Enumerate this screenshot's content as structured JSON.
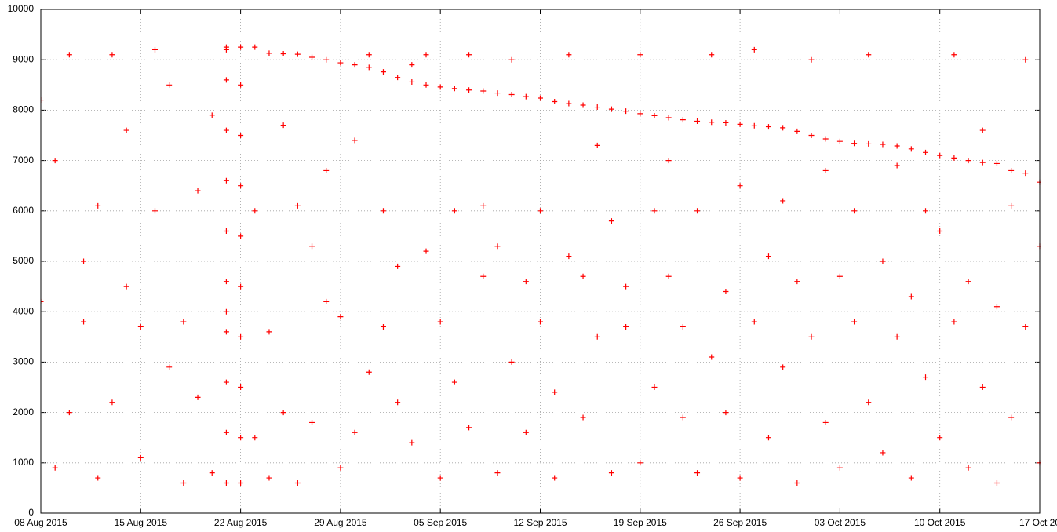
{
  "chart_data": {
    "type": "scatter",
    "color": "#ff0000",
    "grid": true,
    "marker": "+",
    "xlim": [
      "2015-08-08",
      "2015-10-17"
    ],
    "ylim": [
      0,
      10000
    ],
    "yticks": [
      0,
      1000,
      2000,
      3000,
      4000,
      5000,
      6000,
      7000,
      8000,
      9000,
      10000
    ],
    "xticks": [
      {
        "value": "2015-08-08",
        "label": "08 Aug 2015"
      },
      {
        "value": "2015-08-15",
        "label": "15 Aug 2015"
      },
      {
        "value": "2015-08-22",
        "label": "22 Aug 2015"
      },
      {
        "value": "2015-08-29",
        "label": "29 Aug 2015"
      },
      {
        "value": "2015-09-05",
        "label": "05 Sep 2015"
      },
      {
        "value": "2015-09-12",
        "label": "12 Sep 2015"
      },
      {
        "value": "2015-09-19",
        "label": "19 Sep 2015"
      },
      {
        "value": "2015-09-26",
        "label": "26 Sep 2015"
      },
      {
        "value": "2015-10-03",
        "label": "03 Oct 2015"
      },
      {
        "value": "2015-10-10",
        "label": "10 Oct 2015"
      },
      {
        "value": "2015-10-17",
        "label": "17 Oct 20"
      }
    ],
    "x": [
      "2015-08-08",
      "2015-08-08",
      "2015-08-09",
      "2015-08-09",
      "2015-08-10",
      "2015-08-10",
      "2015-08-11",
      "2015-08-11",
      "2015-08-12",
      "2015-08-12",
      "2015-08-13",
      "2015-08-13",
      "2015-08-14",
      "2015-08-14",
      "2015-08-15",
      "2015-08-15",
      "2015-08-16",
      "2015-08-16",
      "2015-08-17",
      "2015-08-17",
      "2015-08-18",
      "2015-08-18",
      "2015-08-19",
      "2015-08-19",
      "2015-08-20",
      "2015-08-20",
      "2015-08-21",
      "2015-08-21",
      "2015-08-23",
      "2015-08-23",
      "2015-08-24",
      "2015-08-24",
      "2015-08-25",
      "2015-08-25",
      "2015-08-26",
      "2015-08-26",
      "2015-08-27",
      "2015-08-27",
      "2015-08-28",
      "2015-08-28",
      "2015-08-29",
      "2015-08-29",
      "2015-08-30",
      "2015-08-30",
      "2015-08-31",
      "2015-08-31",
      "2015-09-01",
      "2015-09-01",
      "2015-09-02",
      "2015-09-02",
      "2015-09-03",
      "2015-09-03",
      "2015-09-04",
      "2015-09-04",
      "2015-09-05",
      "2015-09-05",
      "2015-09-06",
      "2015-09-06",
      "2015-09-07",
      "2015-09-07",
      "2015-09-08",
      "2015-09-08",
      "2015-09-09",
      "2015-09-09",
      "2015-09-10",
      "2015-09-10",
      "2015-09-11",
      "2015-09-11",
      "2015-09-12",
      "2015-09-12",
      "2015-09-13",
      "2015-09-13",
      "2015-09-14",
      "2015-09-14",
      "2015-09-15",
      "2015-09-15",
      "2015-09-16",
      "2015-09-16",
      "2015-09-17",
      "2015-09-17",
      "2015-09-18",
      "2015-09-18",
      "2015-09-19",
      "2015-09-19",
      "2015-09-20",
      "2015-09-20",
      "2015-09-21",
      "2015-09-21",
      "2015-09-22",
      "2015-09-22",
      "2015-09-23",
      "2015-09-23",
      "2015-09-24",
      "2015-09-24",
      "2015-09-25",
      "2015-09-25",
      "2015-09-26",
      "2015-09-26",
      "2015-09-27",
      "2015-09-27",
      "2015-09-28",
      "2015-09-28",
      "2015-09-29",
      "2015-09-29",
      "2015-09-30",
      "2015-09-30",
      "2015-10-01",
      "2015-10-01",
      "2015-10-02",
      "2015-10-02",
      "2015-10-03",
      "2015-10-03",
      "2015-10-04",
      "2015-10-04",
      "2015-10-05",
      "2015-10-05",
      "2015-10-06",
      "2015-10-06",
      "2015-10-07",
      "2015-10-07",
      "2015-10-08",
      "2015-10-08",
      "2015-10-09",
      "2015-10-09",
      "2015-10-10",
      "2015-10-10",
      "2015-10-11",
      "2015-10-11",
      "2015-10-12",
      "2015-10-12",
      "2015-10-13",
      "2015-10-13",
      "2015-10-14",
      "2015-10-14",
      "2015-10-15",
      "2015-10-15",
      "2015-10-16",
      "2015-10-16",
      "2015-10-17",
      "2015-10-17",
      "2015-08-21",
      "2015-08-21",
      "2015-08-21",
      "2015-08-21",
      "2015-08-21",
      "2015-08-21",
      "2015-08-21",
      "2015-08-21",
      "2015-08-21",
      "2015-08-21",
      "2015-08-22",
      "2015-08-22",
      "2015-08-22",
      "2015-08-22",
      "2015-08-22",
      "2015-08-22",
      "2015-08-22",
      "2015-08-22",
      "2015-08-22",
      "2015-08-22",
      "2015-08-23",
      "2015-08-24",
      "2015-08-25",
      "2015-08-26",
      "2015-08-27",
      "2015-08-28",
      "2015-08-29",
      "2015-08-30",
      "2015-08-31",
      "2015-09-01",
      "2015-09-02",
      "2015-09-03",
      "2015-09-04",
      "2015-09-05",
      "2015-09-06",
      "2015-09-07",
      "2015-09-08",
      "2015-09-09",
      "2015-09-10",
      "2015-09-11",
      "2015-09-12",
      "2015-09-13",
      "2015-09-14",
      "2015-09-15",
      "2015-09-16",
      "2015-09-17",
      "2015-09-18",
      "2015-09-19",
      "2015-09-20",
      "2015-09-21",
      "2015-09-22",
      "2015-09-23",
      "2015-09-24",
      "2015-09-25",
      "2015-09-26",
      "2015-09-27",
      "2015-09-28",
      "2015-09-29",
      "2015-09-30",
      "2015-10-01",
      "2015-10-02",
      "2015-10-03",
      "2015-10-04",
      "2015-10-05",
      "2015-10-06",
      "2015-10-07",
      "2015-10-08",
      "2015-10-09",
      "2015-10-10",
      "2015-10-11",
      "2015-10-12",
      "2015-10-13",
      "2015-10-14",
      "2015-10-15",
      "2015-10-16",
      "2015-10-17"
    ],
    "values": [
      4200,
      8200,
      900,
      7000,
      2000,
      9100,
      3800,
      5000,
      700,
      6100,
      9100,
      2200,
      4500,
      7600,
      3700,
      1100,
      6000,
      9200,
      2900,
      8500,
      600,
      3800,
      6400,
      2300,
      800,
      7900,
      4000,
      9200,
      1500,
      6000,
      3600,
      700,
      2000,
      7700,
      600,
      6100,
      1800,
      5300,
      4200,
      6800,
      900,
      3900,
      1600,
      7400,
      2800,
      9100,
      3700,
      6000,
      2200,
      4900,
      1400,
      8900,
      5200,
      9100,
      700,
      3800,
      2600,
      6000,
      1700,
      9100,
      4700,
      6100,
      800,
      5300,
      3000,
      9000,
      1600,
      4600,
      3800,
      6000,
      700,
      2400,
      5100,
      9100,
      1900,
      4700,
      3500,
      7300,
      800,
      5800,
      3700,
      4500,
      1000,
      9100,
      2500,
      6000,
      4700,
      7000,
      1900,
      3700,
      800,
      6000,
      3100,
      9100,
      4400,
      2000,
      700,
      6500,
      3800,
      9200,
      1500,
      5100,
      2900,
      6200,
      600,
      4600,
      3500,
      9000,
      1800,
      6800,
      900,
      4700,
      3800,
      6000,
      2200,
      9100,
      1200,
      5000,
      3500,
      6900,
      700,
      4300,
      2700,
      6000,
      1500,
      5600,
      3800,
      9100,
      900,
      4600,
      2500,
      7600,
      4100,
      600,
      1900,
      6100,
      3700,
      9000,
      1000,
      5300,
      600,
      1600,
      2600,
      3600,
      4600,
      5600,
      6600,
      7600,
      8600,
      9250,
      600,
      1500,
      2500,
      3500,
      4500,
      5500,
      6500,
      7500,
      8500,
      9250,
      9250,
      9130,
      9120,
      9110,
      9050,
      9000,
      8940,
      8900,
      8850,
      8760,
      8650,
      8560,
      8500,
      8460,
      8430,
      8400,
      8380,
      8340,
      8310,
      8270,
      8240,
      8170,
      8130,
      8100,
      8060,
      8020,
      7980,
      7930,
      7890,
      7850,
      7810,
      7780,
      7760,
      7750,
      7720,
      7690,
      7670,
      7650,
      7580,
      7500,
      7430,
      7380,
      7340,
      7330,
      7320,
      7290,
      7230,
      7160,
      7100,
      7050,
      7000,
      6960,
      6940,
      6800,
      6750,
      6570
    ]
  }
}
